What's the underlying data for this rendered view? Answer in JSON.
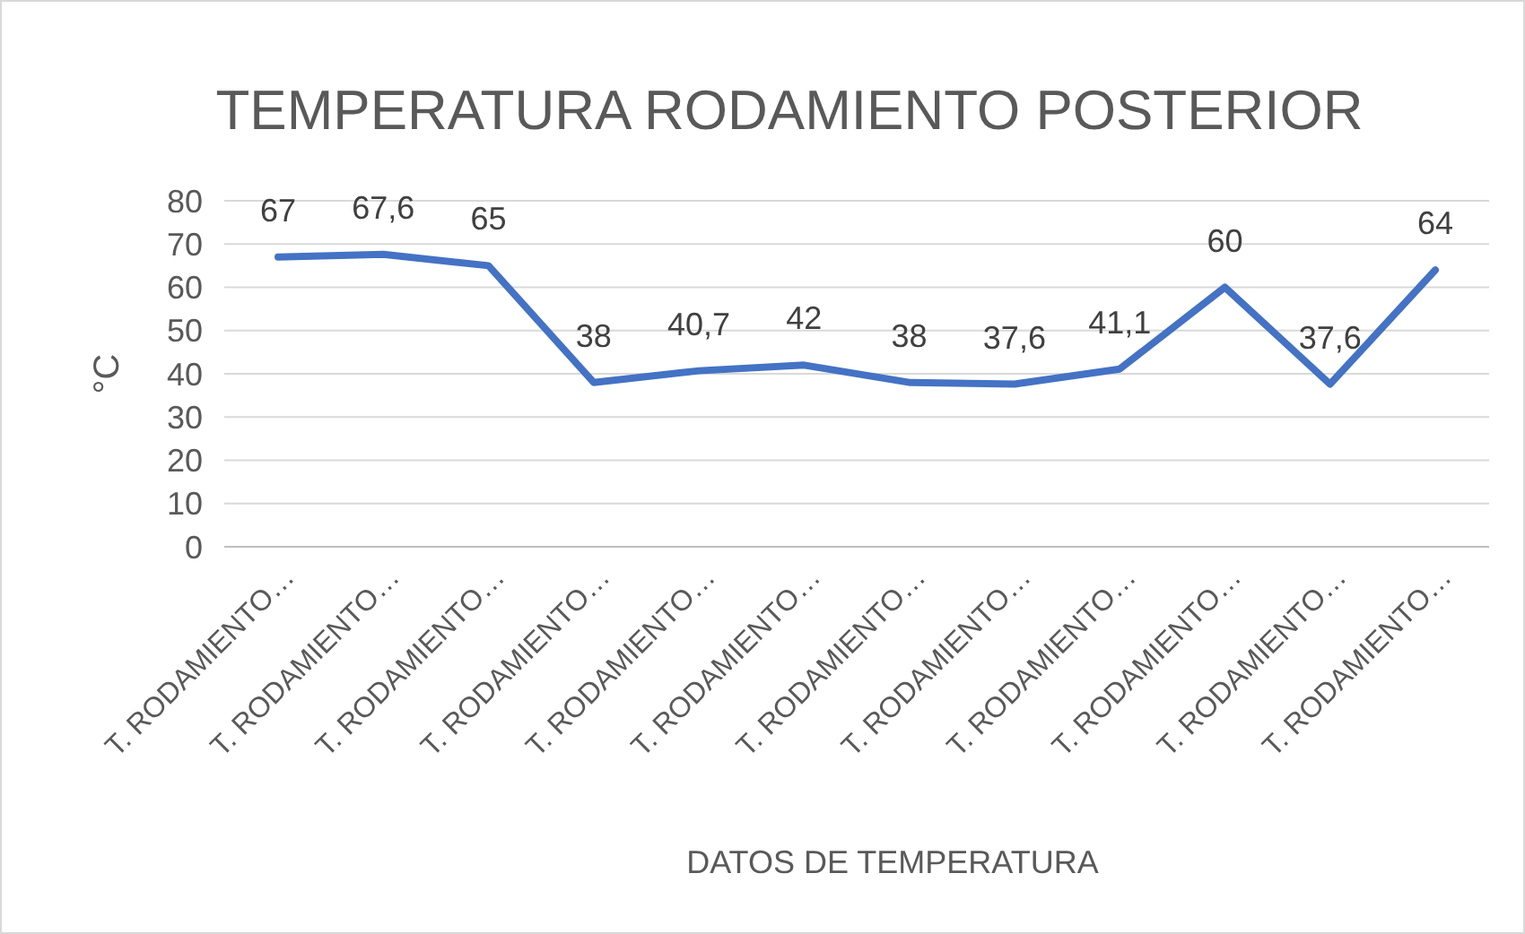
{
  "chart_data": {
    "type": "line",
    "title": "TEMPERATURA RODAMIENTO POSTERIOR",
    "xlabel": "DATOS DE TEMPERATURA",
    "ylabel": "°C",
    "categories": [
      "T. RODAMIENTO…",
      "T. RODAMIENTO…",
      "T. RODAMIENTO…",
      "T. RODAMIENTO…",
      "T. RODAMIENTO…",
      "T. RODAMIENTO…",
      "T. RODAMIENTO…",
      "T. RODAMIENTO…",
      "T. RODAMIENTO…",
      "T. RODAMIENTO…",
      "T. RODAMIENTO…",
      "T. RODAMIENTO…"
    ],
    "series": [
      {
        "color": "#4472c4",
        "values": [
          67,
          67.6,
          65,
          38,
          40.7,
          42,
          38,
          37.6,
          41.1,
          60,
          37.6,
          64
        ],
        "value_labels": [
          "67",
          "67,6",
          "65",
          "38",
          "40,7",
          "42",
          "38",
          "37,6",
          "41,1",
          "60",
          "37,6",
          "64"
        ]
      }
    ],
    "ylim": [
      0,
      80
    ],
    "yticks": [
      0,
      10,
      20,
      30,
      40,
      50,
      60,
      70,
      80
    ],
    "grid": "y",
    "marker": "none",
    "line_style": "solid"
  }
}
